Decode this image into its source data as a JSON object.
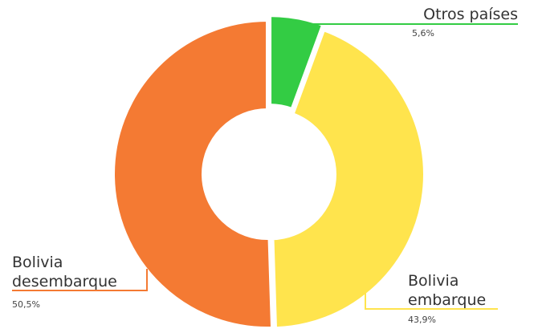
{
  "chart_data": {
    "type": "donut",
    "categories": [
      "Otros países",
      "Bolivia embarque",
      "Bolivia desembarque"
    ],
    "values": [
      5.6,
      43.9,
      50.5
    ],
    "value_labels": [
      "5,6%",
      "43,9%",
      "50,5%"
    ],
    "colors": [
      "#33cc44",
      "#ffe44d",
      "#f47a33"
    ]
  }
}
